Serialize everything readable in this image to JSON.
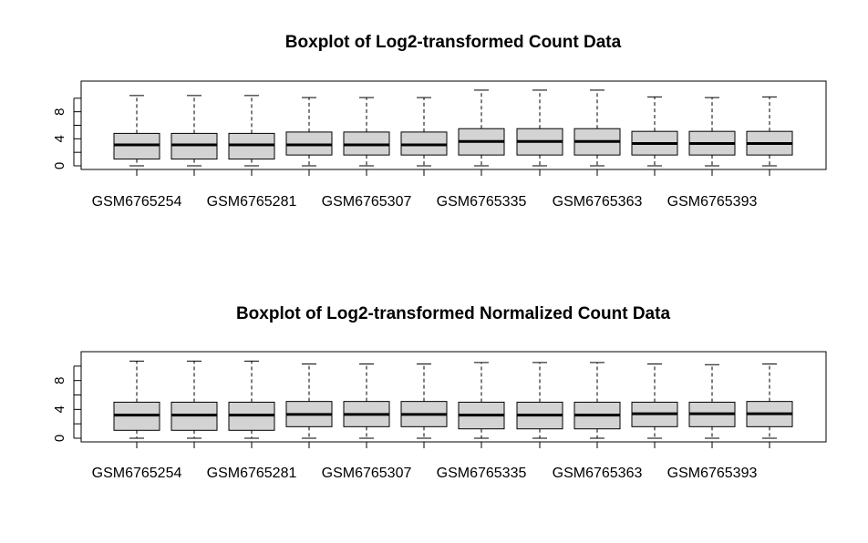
{
  "chart_data": [
    {
      "type": "boxplot",
      "title": "Boxplot of Log2-transformed Count Data",
      "xlabel": "",
      "ylabel": "",
      "ylim": [
        0,
        12
      ],
      "yticks": [
        0,
        4,
        8
      ],
      "grid": false,
      "legend": "none",
      "box_fill": "#d3d3d3",
      "tick_labels": [
        "GSM6765254",
        "GSM6765281",
        "GSM6765307",
        "GSM6765335",
        "GSM6765363",
        "GSM6765393"
      ],
      "boxes": [
        {
          "min": 0,
          "q1": 1.0,
          "median": 3.1,
          "q3": 4.8,
          "max": 10.4
        },
        {
          "min": 0,
          "q1": 1.0,
          "median": 3.1,
          "q3": 4.8,
          "max": 10.4
        },
        {
          "min": 0,
          "q1": 1.0,
          "median": 3.1,
          "q3": 4.8,
          "max": 10.4
        },
        {
          "min": 0,
          "q1": 1.6,
          "median": 3.1,
          "q3": 5.0,
          "max": 10.1
        },
        {
          "min": 0,
          "q1": 1.6,
          "median": 3.1,
          "q3": 5.0,
          "max": 10.1
        },
        {
          "min": 0,
          "q1": 1.6,
          "median": 3.1,
          "q3": 5.0,
          "max": 10.1
        },
        {
          "min": 0,
          "q1": 1.6,
          "median": 3.6,
          "q3": 5.5,
          "max": 11.2
        },
        {
          "min": 0,
          "q1": 1.6,
          "median": 3.6,
          "q3": 5.5,
          "max": 11.2
        },
        {
          "min": 0,
          "q1": 1.6,
          "median": 3.6,
          "q3": 5.5,
          "max": 11.2
        },
        {
          "min": 0,
          "q1": 1.6,
          "median": 3.3,
          "q3": 5.1,
          "max": 10.2
        },
        {
          "min": 0,
          "q1": 1.6,
          "median": 3.3,
          "q3": 5.1,
          "max": 10.1
        },
        {
          "min": 0,
          "q1": 1.6,
          "median": 3.3,
          "q3": 5.1,
          "max": 10.2
        }
      ]
    },
    {
      "type": "boxplot",
      "title": "Boxplot of Log2-transformed Normalized Count Data",
      "xlabel": "",
      "ylabel": "",
      "ylim": [
        0,
        11.5
      ],
      "yticks": [
        0,
        4,
        8
      ],
      "grid": false,
      "legend": "none",
      "box_fill": "#d3d3d3",
      "tick_labels": [
        "GSM6765254",
        "GSM6765281",
        "GSM6765307",
        "GSM6765335",
        "GSM6765363",
        "GSM6765393"
      ],
      "boxes": [
        {
          "min": 0,
          "q1": 1.1,
          "median": 3.2,
          "q3": 5.0,
          "max": 10.7
        },
        {
          "min": 0,
          "q1": 1.1,
          "median": 3.2,
          "q3": 5.0,
          "max": 10.7
        },
        {
          "min": 0,
          "q1": 1.1,
          "median": 3.2,
          "q3": 5.0,
          "max": 10.7
        },
        {
          "min": 0,
          "q1": 1.6,
          "median": 3.3,
          "q3": 5.1,
          "max": 10.3
        },
        {
          "min": 0,
          "q1": 1.6,
          "median": 3.3,
          "q3": 5.1,
          "max": 10.3
        },
        {
          "min": 0,
          "q1": 1.6,
          "median": 3.3,
          "q3": 5.1,
          "max": 10.3
        },
        {
          "min": 0,
          "q1": 1.3,
          "median": 3.2,
          "q3": 5.0,
          "max": 10.5
        },
        {
          "min": 0,
          "q1": 1.3,
          "median": 3.2,
          "q3": 5.0,
          "max": 10.5
        },
        {
          "min": 0,
          "q1": 1.3,
          "median": 3.2,
          "q3": 5.0,
          "max": 10.5
        },
        {
          "min": 0,
          "q1": 1.6,
          "median": 3.4,
          "q3": 5.0,
          "max": 10.3
        },
        {
          "min": 0,
          "q1": 1.6,
          "median": 3.4,
          "q3": 5.0,
          "max": 10.2
        },
        {
          "min": 0,
          "q1": 1.6,
          "median": 3.4,
          "q3": 5.1,
          "max": 10.3
        }
      ]
    }
  ]
}
